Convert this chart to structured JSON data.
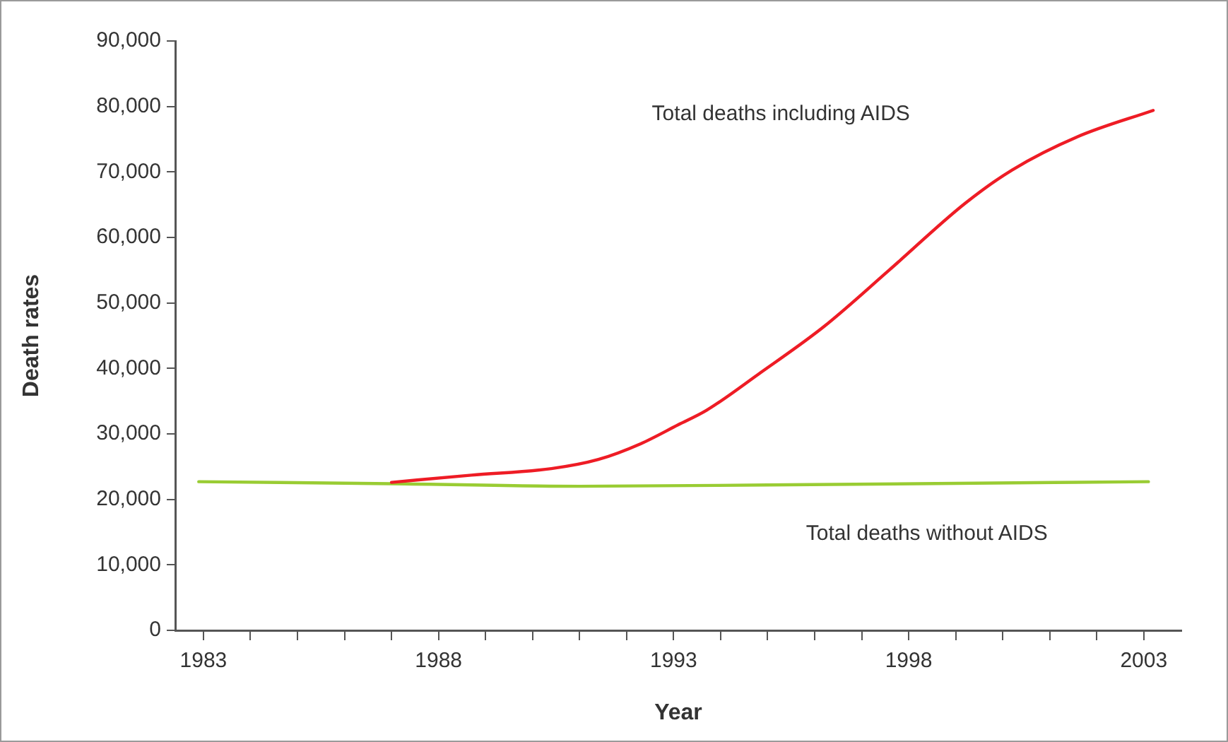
{
  "chart_data": {
    "type": "line",
    "xlabel": "Year",
    "ylabel": "Death rates",
    "xlim": [
      1982.4,
      2003.8
    ],
    "xticks": [
      1983,
      {
        "value": 1984,
        "label": null
      },
      {
        "value": 1985,
        "label": null
      },
      {
        "value": 1986,
        "label": null
      },
      {
        "value": 1987,
        "label": null
      },
      1988,
      {
        "value": 1989,
        "label": null
      },
      {
        "value": 1990,
        "label": null
      },
      {
        "value": 1991,
        "label": null
      },
      {
        "value": 1992,
        "label": null
      },
      1993,
      {
        "value": 1994,
        "label": null
      },
      {
        "value": 1995,
        "label": null
      },
      {
        "value": 1996,
        "label": null
      },
      {
        "value": 1997,
        "label": null
      },
      1998,
      {
        "value": 1999,
        "label": null
      },
      {
        "value": 2000,
        "label": null
      },
      {
        "value": 2001,
        "label": null
      },
      {
        "value": 2002,
        "label": null
      },
      2003
    ],
    "ylim": [
      0,
      90000
    ],
    "yticks": [
      0,
      {
        "value": 10000,
        "label": "10,000"
      },
      {
        "value": 20000,
        "label": "20,000"
      },
      {
        "value": 30000,
        "label": "30,000"
      },
      {
        "value": 40000,
        "label": "40,000"
      },
      {
        "value": 50000,
        "label": "50,000"
      },
      {
        "value": 60000,
        "label": "60,000"
      },
      {
        "value": 70000,
        "label": "70,000"
      },
      {
        "value": 80000,
        "label": "80,000"
      },
      {
        "value": 90000,
        "label": "90,000"
      }
    ],
    "grid": false,
    "legend": false,
    "marker": "none",
    "line_style": "solid",
    "series": [
      {
        "color": "#ee1c25",
        "x": [
          1987,
          1988.7,
          1990.4,
          1991.4,
          1992.3,
          1993.1,
          1993.7,
          1994.8,
          1996.2,
          1997.6,
          1999.2,
          2000.2,
          2001.6,
          2003.2
        ],
        "values": [
          22600,
          23700,
          24700,
          26100,
          28500,
          31400,
          33600,
          39100,
          46400,
          55100,
          65200,
          70300,
          75400,
          79400
        ]
      },
      {
        "color": "#99cc33",
        "x": [
          1982.9,
          1987,
          1991,
          1995,
          2003.1
        ],
        "values": [
          22700,
          22400,
          22000,
          22200,
          22700
        ]
      }
    ],
    "annotations": [
      "Total deaths including AIDS",
      "Total deaths without AIDS"
    ]
  }
}
